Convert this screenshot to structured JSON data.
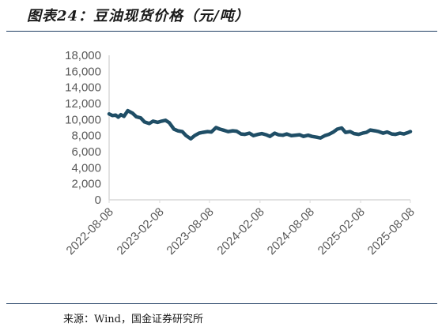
{
  "header": {
    "title": "图表24：豆油现货价格（元/吨）"
  },
  "footer": {
    "source": "来源：Wind，国金证券研究所"
  },
  "colors": {
    "line": "#1f4e66",
    "axis": "#d9d9d9",
    "rule": "#1f3d63",
    "tick_text": "#595959"
  },
  "chart_data": {
    "type": "line",
    "title": "豆油现货价格（元/吨）",
    "xlabel": "",
    "ylabel": "",
    "ylim": [
      0,
      18000
    ],
    "yticks": [
      "0",
      "2,000",
      "4,000",
      "6,000",
      "8,000",
      "10,000",
      "12,000",
      "14,000",
      "16,000",
      "18,000"
    ],
    "xlim": [
      "2022-08-08",
      "2025-08-08"
    ],
    "xticks": [
      "2022-08-08",
      "2023-02-08",
      "2023-08-08",
      "2024-02-08",
      "2024-08-08",
      "2025-02-08",
      "2025-08-08"
    ],
    "grid": false,
    "legend": "none",
    "series": [
      {
        "x": [
          "2022-08-08",
          "2022-08-20",
          "2022-09-01",
          "2022-09-10",
          "2022-09-20",
          "2022-10-01",
          "2022-10-15",
          "2022-11-01",
          "2022-11-15",
          "2022-12-01",
          "2022-12-15",
          "2023-01-01",
          "2023-01-15",
          "2023-02-01",
          "2023-02-15",
          "2023-03-01",
          "2023-03-15",
          "2023-04-01",
          "2023-04-15",
          "2023-05-01",
          "2023-05-15",
          "2023-06-01",
          "2023-06-15",
          "2023-07-01",
          "2023-07-15",
          "2023-08-01",
          "2023-08-15",
          "2023-09-01",
          "2023-09-15",
          "2023-10-01",
          "2023-10-15",
          "2023-11-01",
          "2023-11-15",
          "2023-12-01",
          "2023-12-15",
          "2024-01-01",
          "2024-01-15",
          "2024-02-01",
          "2024-02-15",
          "2024-03-01",
          "2024-03-15",
          "2024-04-01",
          "2024-04-15",
          "2024-05-01",
          "2024-05-15",
          "2024-06-01",
          "2024-06-15",
          "2024-07-01",
          "2024-07-15",
          "2024-08-01",
          "2024-08-15",
          "2024-09-01",
          "2024-09-15",
          "2024-10-01",
          "2024-10-15",
          "2024-11-01",
          "2024-11-15",
          "2024-12-01",
          "2024-12-15",
          "2025-01-01",
          "2025-01-15",
          "2025-02-01",
          "2025-02-15",
          "2025-03-01",
          "2025-03-15",
          "2025-04-01",
          "2025-04-15",
          "2025-05-01",
          "2025-05-15",
          "2025-06-01",
          "2025-06-15",
          "2025-07-01",
          "2025-07-15",
          "2025-08-01",
          "2025-08-08"
        ],
        "values": [
          10700,
          10500,
          10550,
          10300,
          10600,
          10400,
          11100,
          10800,
          10350,
          10200,
          9700,
          9500,
          9800,
          9650,
          9800,
          9900,
          9600,
          8800,
          8600,
          8500,
          8000,
          7600,
          8000,
          8300,
          8400,
          8500,
          8450,
          9000,
          8800,
          8650,
          8500,
          8600,
          8550,
          8200,
          8150,
          8300,
          8000,
          8150,
          8250,
          8100,
          7900,
          8300,
          8100,
          8050,
          8200,
          8000,
          8050,
          8100,
          7900,
          8050,
          7900,
          7800,
          7700,
          8000,
          8150,
          8450,
          8800,
          8950,
          8400,
          8500,
          8250,
          8150,
          8300,
          8400,
          8700,
          8600,
          8500,
          8300,
          8450,
          8200,
          8150,
          8300,
          8200,
          8400,
          8500
        ]
      }
    ]
  }
}
